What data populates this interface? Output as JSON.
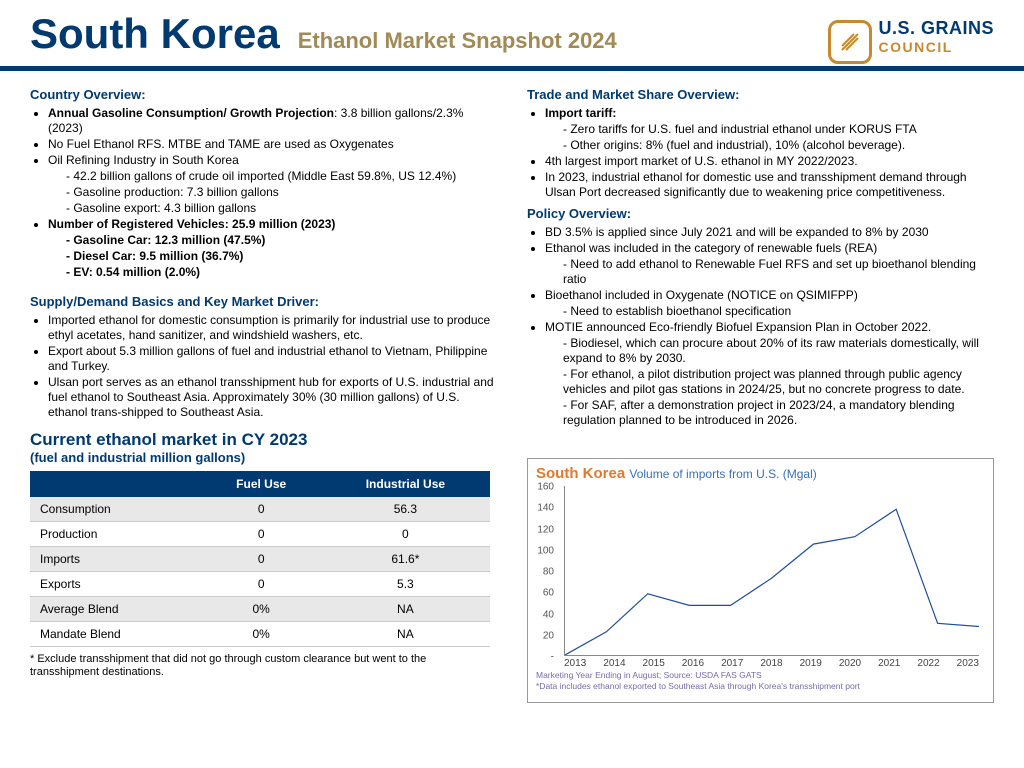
{
  "header": {
    "title": "South Korea",
    "subtitle": "Ethanol Market Snapshot 2024",
    "org1": "U.S. GRAINS",
    "org2": "COUNCIL"
  },
  "colors": {
    "navy": "#003a70",
    "gold": "#a08a55",
    "orange": "#e07a2e",
    "blue": "#3b6fb6",
    "line": "#1f4e9c"
  },
  "left": {
    "h1": "Country Overview:",
    "b1": [
      {
        "bold": true,
        "pre": "Annual Gasoline Consumption/ Growth Projection",
        "post": ": 3.8 billion gallons/2.3% (2023)"
      },
      {
        "t": "No Fuel Ethanol RFS. MTBE and TAME are used as Oxygenates"
      },
      {
        "t": "Oil Refining Industry in South Korea",
        "sub": [
          "42.2 billion gallons of crude oil imported (Middle East 59.8%, US 12.4%)",
          "Gasoline production: 7.3 billion gallons",
          "Gasoline export: 4.3 billion gallons"
        ]
      },
      {
        "bold": true,
        "t": "Number of Registered Vehicles: 25.9 million (2023)",
        "sub": [
          "Gasoline Car: 12.3 million (47.5%)",
          "Diesel Car: 9.5 million (36.7%)",
          "EV: 0.54 million (2.0%)"
        ]
      }
    ],
    "h2": "Supply/Demand Basics and Key Market Driver:",
    "b2": [
      "Imported ethanol for domestic consumption is primarily for industrial use to produce ethyl acetates, hand sanitizer, and windshield washers, etc.",
      "Export about 5.3 million gallons of fuel and industrial ethanol to Vietnam, Philippine and Turkey.",
      "Ulsan port serves as an ethanol transshipment hub for exports of U.S. industrial and fuel ethanol to Southeast Asia. Approximately 30% (30 million gallons) of U.S. ethanol trans-shipped to Southeast Asia."
    ],
    "tbl_t1": "Current ethanol market in CY 2023",
    "tbl_t2": "(fuel and industrial million gallons)",
    "tbl_cols": [
      "",
      "Fuel Use",
      "Industrial Use"
    ],
    "tbl_rows": [
      [
        "Consumption",
        "0",
        "56.3"
      ],
      [
        "Production",
        "0",
        "0"
      ],
      [
        "Imports",
        "0",
        "61.6*"
      ],
      [
        "Exports",
        "0",
        "5.3"
      ],
      [
        "Average Blend",
        "0%",
        "NA"
      ],
      [
        "Mandate Blend",
        "0%",
        "NA"
      ]
    ],
    "footnote": "* Exclude transshipment that did not go through custom clearance but went to the transshipment destinations."
  },
  "right": {
    "h1": "Trade and Market Share Overview:",
    "b1": [
      {
        "bold": true,
        "t": "Import tariff:",
        "sub": [
          "Zero tariffs for U.S. fuel and industrial ethanol under KORUS FTA",
          "Other origins: 8% (fuel and industrial), 10% (alcohol beverage)."
        ]
      },
      {
        "t": "4th largest import market of U.S. ethanol in MY 2022/2023."
      },
      {
        "t": "In 2023, industrial ethanol for domestic use and transshipment demand through Ulsan Port decreased significantly due to weakening price competitiveness."
      }
    ],
    "h2": "Policy Overview:",
    "b2": [
      {
        "t": "BD 3.5% is applied since July 2021 and will be expanded to 8% by 2030"
      },
      {
        "t": "Ethanol was included in the category of renewable fuels (REA)",
        "sub": [
          "Need to add ethanol to Renewable Fuel RFS and set up bioethanol blending ratio"
        ]
      },
      {
        "t": "Bioethanol included in Oxygenate (NOTICE on QSIMIFPP)",
        "sub": [
          "Need to establish bioethanol specification"
        ]
      },
      {
        "t": "MOTIE announced Eco-friendly Biofuel Expansion Plan in October 2022.",
        "sub": [
          "Biodiesel, which can procure about 20% of its raw materials domestically, will expand to 8% by 2030.",
          "For ethanol, a pilot distribution project was planned through public agency vehicles and pilot gas stations in 2024/25, but no concrete progress to date.",
          "For SAF, after a demonstration project in 2023/24, a mandatory blending regulation planned to be introduced in 2026."
        ]
      }
    ]
  },
  "chart": {
    "title1": "South Korea",
    "title2": "Volume of imports from U.S. (Mgal)",
    "ymax": 160,
    "ystep": 20,
    "yticks": [
      "-",
      "20",
      "40",
      "60",
      "80",
      "100",
      "120",
      "140",
      "160"
    ],
    "years": [
      "2013",
      "2014",
      "2015",
      "2016",
      "2017",
      "2018",
      "2019",
      "2020",
      "2021",
      "2022",
      "2023"
    ],
    "values": [
      0,
      22,
      58,
      47,
      47,
      73,
      105,
      112,
      138,
      30,
      27
    ],
    "line_color": "#1f4e9c",
    "foot1": "Marketing Year Ending in August; Source: USDA FAS GATS",
    "foot2": "*Data includes ethanol exported to Southeast Asia through Korea's transshipment port"
  }
}
